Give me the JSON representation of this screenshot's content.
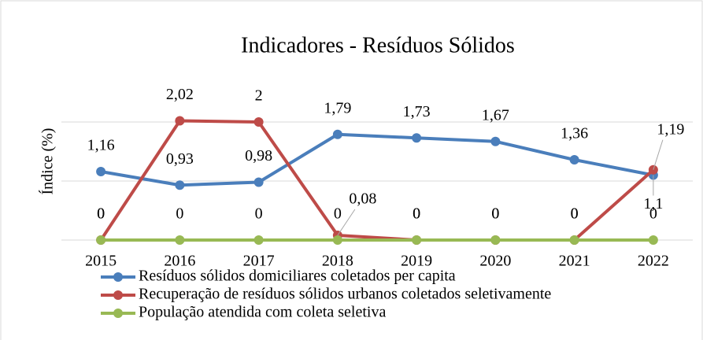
{
  "chart_data": {
    "type": "line",
    "title": "Indicadores - Resíduos Sólidos",
    "y_label": "Índice (%)",
    "categories": [
      "2015",
      "2016",
      "2017",
      "2018",
      "2019",
      "2020",
      "2021",
      "2022"
    ],
    "ylim": [
      0,
      3
    ],
    "yticks": [
      0,
      1,
      2
    ],
    "grid": true,
    "series": [
      {
        "name": "Resíduos sólidos domiciliares coletados per capita",
        "color": "#4a7ebb",
        "values": [
          1.16,
          0.93,
          0.98,
          1.79,
          1.73,
          1.67,
          1.36,
          1.1
        ],
        "value_labels": [
          "1,16",
          "0,93",
          "0,98",
          "1,79",
          "1,73",
          "1,67",
          "1,36",
          "1,1"
        ]
      },
      {
        "name": "Recuperação de resíduos sólidos urbanos coletados seletivamente",
        "color": "#be4b48",
        "values": [
          0,
          2.02,
          2,
          0.08,
          0,
          0,
          0,
          1.19
        ],
        "value_labels": [
          "0",
          "2,02",
          "2",
          "0,08",
          "0",
          "0",
          "0",
          "1,19"
        ]
      },
      {
        "name": "População atendida com coleta seletiva",
        "color": "#98b954",
        "values": [
          0,
          0,
          0,
          0,
          0,
          0,
          0,
          0
        ],
        "value_labels": [
          "0",
          "0",
          "0",
          "0",
          "0",
          "0",
          "0",
          "0"
        ]
      }
    ]
  }
}
